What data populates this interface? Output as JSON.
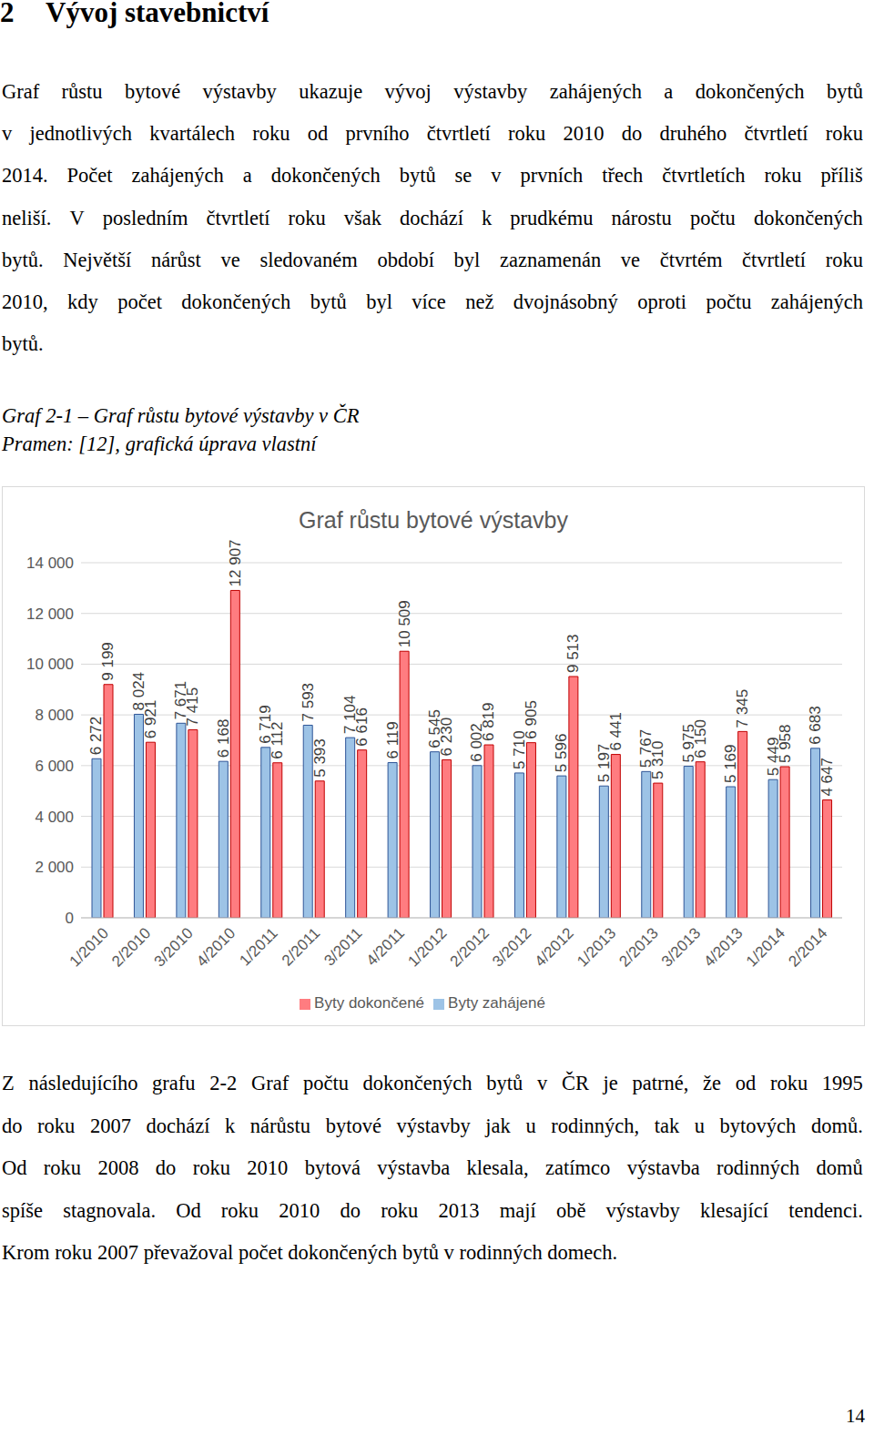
{
  "heading": {
    "number": "2",
    "title": "Vývoj stavebnictví"
  },
  "paragraph_1": [
    "Graf růstu bytové výstavby ukazuje vývoj výstavby zahájených a dokončených bytů",
    "v jednotlivých kvartálech roku od prvního čtvrtletí roku 2010 do druhého čtvrtletí roku",
    "2014. Počet zahájených a dokončených bytů se v prvních třech čtvrtletích roku příliš",
    "neliší. V posledním čtvrtletí roku však dochází k prudkému nárostu počtu dokončených",
    "bytů. Největší nárůst ve sledovaném období byl zaznamenán ve čtvrtém čtvrtletí roku",
    "2010, kdy počet dokončených bytů byl více než dvojnásobný oproti počtu zahájených",
    "bytů."
  ],
  "caption": [
    "Graf 2-1 – Graf růstu bytové výstavby v ČR",
    "Pramen: [12], grafická úprava vlastní"
  ],
  "chart_data": {
    "type": "bar",
    "title": "Graf růstu bytové výstavby",
    "categories": [
      "1/2010",
      "2/2010",
      "3/2010",
      "4/2010",
      "1/2011",
      "2/2011",
      "3/2011",
      "4/2011",
      "1/2012",
      "2/2012",
      "3/2012",
      "4/2012",
      "1/2013",
      "2/2013",
      "3/2013",
      "4/2013",
      "1/2014",
      "2/2014"
    ],
    "series": [
      {
        "name": "Byty zahájené",
        "color": "#9DC3E6",
        "values": [
          6272,
          8024,
          7671,
          6168,
          6719,
          7593,
          7104,
          6119,
          6545,
          6002,
          5710,
          5596,
          5197,
          5767,
          5975,
          5169,
          5449,
          6683
        ],
        "value_labels": [
          "6 272",
          "8 024",
          "7 671",
          "6 168",
          "6 719",
          "7 593",
          "7 104",
          "6 119",
          "6 545",
          "6 002",
          "5 710",
          "5 596",
          "5 197",
          "5 767",
          "5 975",
          "5 169",
          "5 449",
          "6 683"
        ]
      },
      {
        "name": "Byty dokončené",
        "color": "#FF7C80",
        "values": [
          9199,
          6921,
          7415,
          12907,
          6112,
          5393,
          6616,
          10509,
          6230,
          6819,
          6905,
          9513,
          6441,
          5310,
          6150,
          7345,
          5958,
          4647
        ],
        "value_labels": [
          "9 199",
          "6 921",
          "7 415",
          "12 907",
          "6 112",
          "5 393",
          "6 616",
          "10 509",
          "6 230",
          "6 819",
          "6 905",
          "9 513",
          "6 441",
          "5 310",
          "6 150",
          "7 345",
          "5 958",
          "4 647"
        ]
      }
    ],
    "ylim": [
      0,
      14000
    ],
    "yticks": [
      0,
      {
        "value": 2000,
        "label": "2 000"
      },
      {
        "value": 4000,
        "label": "4 000"
      },
      {
        "value": 6000,
        "label": "6 000"
      },
      {
        "value": 8000,
        "label": "8 000"
      },
      {
        "value": 10000,
        "label": "10 000"
      },
      {
        "value": 12000,
        "label": "12 000"
      },
      {
        "value": 14000,
        "label": "14 000"
      }
    ],
    "grid": true,
    "legend": "bottom",
    "data_labels": true
  },
  "paragraph_2": [
    "Z následujícího grafu 2-2 Graf počtu dokončených bytů v ČR je patrné, že od roku 1995",
    "do roku 2007 dochází k nárůstu bytové výstavby jak u rodinných, tak u bytových domů.",
    "Od roku 2008 do roku 2010 bytová výstavba klesala, zatímco výstavba rodinných domů",
    "spíše stagnovala. Od roku 2010 do roku 2013 mají obě výstavby klesající tendenci.",
    "Krom roku 2007 převažoval počet dokončených bytů v rodinných domech."
  ],
  "page_number": "14"
}
